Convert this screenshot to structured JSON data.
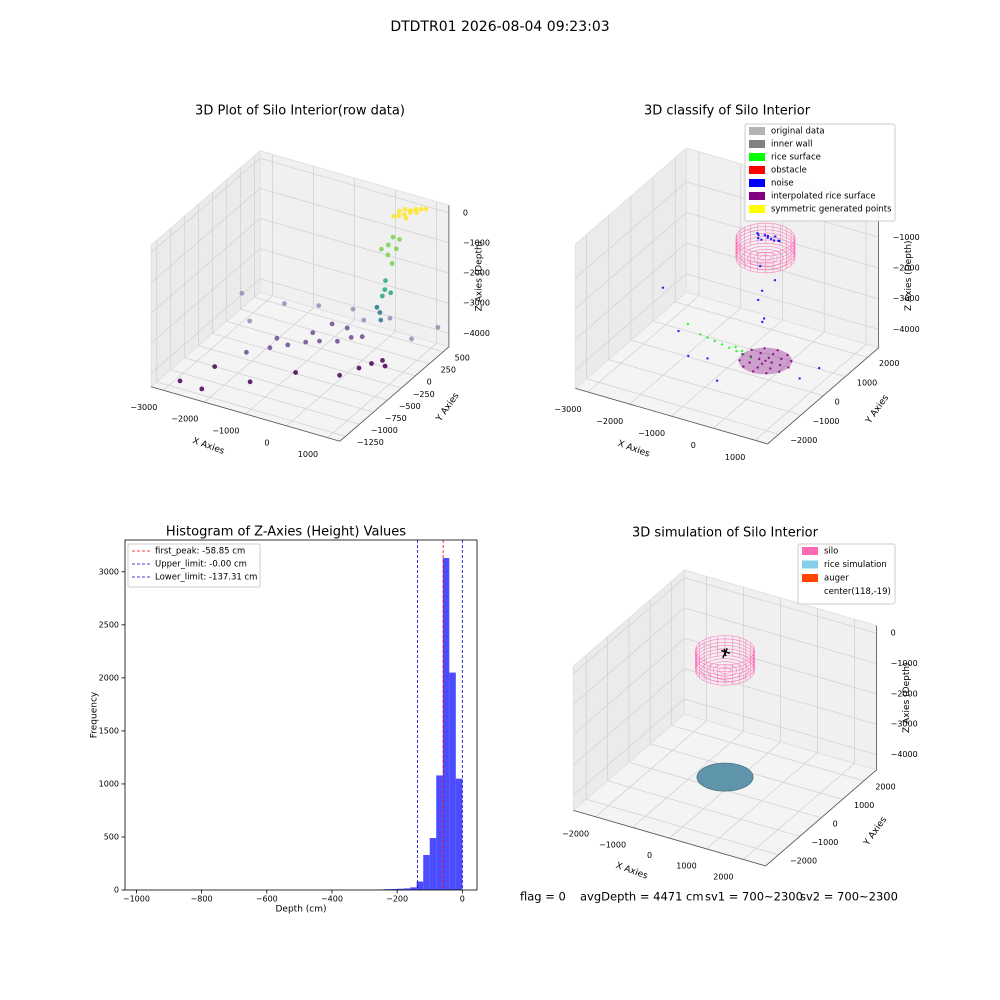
{
  "title": "DTDTR01 2026-08-04 09:23:03",
  "chart_data": [
    {
      "type": "scatter3d",
      "title": "3D Plot of Silo Interior(row data)",
      "xlabel": "X Axies",
      "ylabel": "Y Axies",
      "zlabel": "Z Axies (Depth)",
      "xlim": [
        -3300,
        1300
      ],
      "ylim": [
        -1350,
        600
      ],
      "zlim": [
        -4450,
        250
      ],
      "xticks": [
        {
          "value": -3000,
          "label": "−3000"
        },
        {
          "value": -2000,
          "label": "−2000"
        },
        {
          "value": -1000,
          "label": "−1000"
        },
        0,
        1000
      ],
      "yticks": [
        {
          "value": -1250,
          "label": "−1250"
        },
        {
          "value": -1000,
          "label": "−1000"
        },
        {
          "value": -750,
          "label": "−750"
        },
        {
          "value": -500,
          "label": "−500"
        },
        {
          "value": -250,
          "label": "−250"
        },
        0,
        250,
        500
      ],
      "zticks": [
        {
          "value": -4000,
          "label": "−4000"
        },
        {
          "value": -3000,
          "label": "−3000"
        },
        {
          "value": -2000,
          "label": "−2000"
        },
        {
          "value": -1000,
          "label": "−1000"
        },
        0
      ],
      "series": [
        {
          "color": "#fde725",
          "x": [
            300,
            400,
            500,
            600,
            350,
            450,
            550,
            700,
            250,
            800,
            500,
            650
          ],
          "y": [
            450,
            480,
            500,
            520,
            400,
            430,
            460,
            540,
            380,
            560,
            420,
            500
          ],
          "z": [
            -100,
            -50,
            -80,
            -30,
            -150,
            -120,
            -60,
            -20,
            -180,
            -10,
            -200,
            -90
          ]
        },
        {
          "color": "#7ad151",
          "x": [
            350,
            300,
            400,
            250,
            380,
            450,
            200
          ],
          "y": [
            300,
            250,
            320,
            280,
            260,
            340,
            200
          ],
          "z": [
            -700,
            -900,
            -1100,
            -1300,
            -1500,
            -800,
            -1000
          ]
        },
        {
          "color": "#22a884",
          "x": [
            300,
            350,
            250,
            400
          ],
          "y": [
            200,
            150,
            180,
            220
          ],
          "z": [
            -2000,
            -2200,
            -2500,
            -2400
          ]
        },
        {
          "color": "#2a788e",
          "x": [
            300,
            350,
            200
          ],
          "y": [
            100,
            80,
            120
          ],
          "z": [
            -2900,
            -3100,
            -2800
          ]
        },
        {
          "color": "#440154",
          "x": [
            -2800,
            -2200,
            -1500,
            -800,
            200,
            500,
            700,
            -2500,
            0,
            300
          ],
          "y": [
            -1200,
            -1250,
            -900,
            -600,
            -200,
            0,
            -100,
            -800,
            -400,
            -50
          ],
          "z": [
            -4300,
            -4250,
            -4300,
            -4200,
            -4300,
            -4250,
            -4200,
            -4350,
            -4300,
            -4350
          ]
        },
        {
          "color": "#6b4c8f",
          "x": [
            -2000,
            -1700,
            -1400,
            -1100,
            -900,
            -600,
            -400,
            -200,
            -1800,
            -1200,
            -1000,
            -700
          ],
          "y": [
            -600,
            -400,
            -300,
            -200,
            -100,
            0,
            100,
            150,
            -200,
            0,
            200,
            250
          ],
          "z": [
            -4000,
            -4050,
            -4000,
            -3950,
            -4000,
            -4050,
            -4000,
            -3980,
            -4100,
            -4000,
            -3950,
            -4050
          ]
        },
        {
          "color": "#9b87b5",
          "x": [
            -3200,
            -2600,
            -2300,
            -1600,
            -900,
            0,
            800,
            1100,
            -500
          ],
          "y": [
            200,
            -100,
            300,
            400,
            500,
            500,
            300,
            550,
            400
          ],
          "z": [
            -3800,
            -4000,
            -3950,
            -3900,
            -3900,
            -3850,
            -3900,
            -3800,
            -3950
          ]
        }
      ]
    },
    {
      "type": "scatter3d",
      "title": "3D classify of Silo Interior",
      "xlabel": "X Axies",
      "ylabel": "Y Axies",
      "zlabel": "Z Axies (Depth)",
      "xlim": [
        -3300,
        1300
      ],
      "ylim": [
        -2500,
        2500
      ],
      "zlim": [
        -4600,
        100
      ],
      "xticks": [
        {
          "value": -3000,
          "label": "−3000"
        },
        {
          "value": -2000,
          "label": "−2000"
        },
        {
          "value": -1000,
          "label": "−1000"
        },
        0,
        1000
      ],
      "yticks": [
        {
          "value": -2000,
          "label": "−2000"
        },
        {
          "value": -1000,
          "label": "−1000"
        },
        0,
        1000,
        2000
      ],
      "zticks": [
        {
          "value": -4000,
          "label": "−4000"
        },
        {
          "value": -3000,
          "label": "−3000"
        },
        {
          "value": -2000,
          "label": "−2000"
        },
        {
          "value": -1000,
          "label": "−1000"
        }
      ],
      "series": [
        {
          "name": "original data",
          "color": "#b3b3b3"
        },
        {
          "name": "inner wall",
          "color": "#808080"
        },
        {
          "name": "rice surface",
          "color": "#00ff00",
          "x": [
            -1800,
            -1600,
            -1400,
            -1200,
            -1000,
            -800,
            -600,
            -400,
            -2200,
            -900,
            -700
          ],
          "y": [
            300,
            250,
            200,
            150,
            100,
            50,
            0,
            -50,
            500,
            200,
            120
          ],
          "z": [
            -4000,
            -4000,
            -4000,
            -4000,
            -4000,
            -4000,
            -4000,
            -4000,
            -3950,
            -4000,
            -4000
          ]
        },
        {
          "name": "obstacle",
          "color": "#ff0000"
        },
        {
          "name": "noise",
          "color": "#0000ff",
          "x": [
            -300,
            -200,
            -100,
            0,
            100,
            -250,
            -150,
            50,
            150,
            -50,
            200,
            -350,
            -100,
            0,
            -200,
            100,
            -50,
            200,
            -2800,
            -2000,
            -1500,
            -600,
            900,
            1100,
            -1200
          ],
          "y": [
            100,
            200,
            150,
            100,
            50,
            0,
            -50,
            200,
            150,
            50,
            100,
            150,
            -200,
            -300,
            -100,
            -400,
            -200,
            -100,
            500,
            -300,
            -800,
            -1200,
            -300,
            200,
            -500
          ],
          "z": [
            -50,
            -80,
            -30,
            -60,
            -40,
            -70,
            -50,
            -20,
            -90,
            -10,
            -50,
            -40,
            -800,
            -1500,
            -2000,
            -2300,
            -2600,
            -1200,
            -3000,
            -3600,
            -3900,
            -4100,
            -4000,
            -3900,
            -4050
          ]
        },
        {
          "name": "interpolated rice surface",
          "color": "#800080",
          "x": [
            470,
            396,
            195,
            -80,
            -355,
            -556,
            -630,
            -556,
            -355,
            -80,
            195,
            396,
            270,
            167,
            -80,
            -327,
            -430,
            -327,
            -80,
            167,
            70,
            -80,
            -230,
            -80,
            -80
          ],
          "y": [
            0,
            275,
            476,
            550,
            476,
            275,
            0,
            -275,
            -476,
            -550,
            -476,
            -275,
            0,
            247,
            350,
            247,
            0,
            -247,
            -350,
            -247,
            0,
            150,
            0,
            -150,
            0
          ],
          "z": [
            -4000,
            -4000,
            -4000,
            -4000,
            -4000,
            -4000,
            -4000,
            -4000,
            -4000,
            -4000,
            -4000,
            -4000,
            -4000,
            -4000,
            -4000,
            -4000,
            -4000,
            -4000,
            -4000,
            -4000,
            -4000,
            -4000,
            -4000,
            -4000,
            -4000
          ]
        },
        {
          "name": "symmetric generated points",
          "color": "#ffff00"
        }
      ]
    },
    {
      "type": "histogram",
      "title": "Histogram of Z-Axies (Height) Values",
      "xlabel": "Depth (cm)",
      "ylabel": "Frequency",
      "color": "#0000ff",
      "alpha": 0.7,
      "bins": [
        -260,
        -240,
        -220,
        -200,
        -180,
        -160,
        -140,
        -120,
        -100,
        -80,
        -60,
        -40,
        -20,
        0
      ],
      "values": [
        5,
        8,
        10,
        12,
        15,
        25,
        80,
        330,
        490,
        1080,
        3130,
        2050,
        1050
      ],
      "xlim": [
        -1035,
        45
      ],
      "ylim": [
        0,
        3300
      ],
      "xticks": [
        {
          "value": -1000,
          "label": "−1000"
        },
        {
          "value": -800,
          "label": "−800"
        },
        {
          "value": -600,
          "label": "−600"
        },
        {
          "value": -400,
          "label": "−400"
        },
        {
          "value": -200,
          "label": "−200"
        },
        0
      ],
      "yticks": [
        0,
        500,
        1000,
        1500,
        2000,
        2500,
        3000
      ],
      "vlines": [
        {
          "value": -58.85,
          "label": "first_peak: -58.85 cm",
          "color": "#ff0000"
        },
        {
          "value": -0.0,
          "label": "Upper_limit: -0.00 cm",
          "color": "#0000cc"
        },
        {
          "value": -137.31,
          "label": "Lower_limit: -137.31 cm",
          "color": "#0000cc"
        }
      ]
    },
    {
      "type": "scatter3d",
      "title": "3D simulation of Silo Interior",
      "xlabel": "X Axies",
      "ylabel": "Y Axies",
      "zlabel": "Z Axies (Depth)",
      "xlim": [
        -2600,
        2600
      ],
      "ylim": [
        -2600,
        2600
      ],
      "zlim": [
        -4500,
        250
      ],
      "xticks": [
        {
          "value": -2000,
          "label": "−2000"
        },
        {
          "value": -1000,
          "label": "−1000"
        },
        0,
        1000,
        2000
      ],
      "yticks": [
        {
          "value": -2000,
          "label": "−2000"
        },
        {
          "value": -1000,
          "label": "−1000"
        },
        0,
        1000,
        2000
      ],
      "zticks": [
        {
          "value": -4000,
          "label": "−4000"
        },
        {
          "value": -3000,
          "label": "−3000"
        },
        {
          "value": -2000,
          "label": "−2000"
        },
        {
          "value": -1000,
          "label": "−1000"
        },
        0
      ],
      "series": [
        {
          "name": "silo",
          "color": "#ff69b4"
        },
        {
          "name": "rice simulation",
          "color": "#87ceeb"
        },
        {
          "name": "auger",
          "color": "#ff4500"
        },
        {
          "name": "center(118,-19)"
        }
      ],
      "annotations": [
        "flag = 0",
        "avgDepth = 4471 cm",
        "sv1 = 700~2300",
        "sv2 = 700~2300"
      ]
    }
  ]
}
